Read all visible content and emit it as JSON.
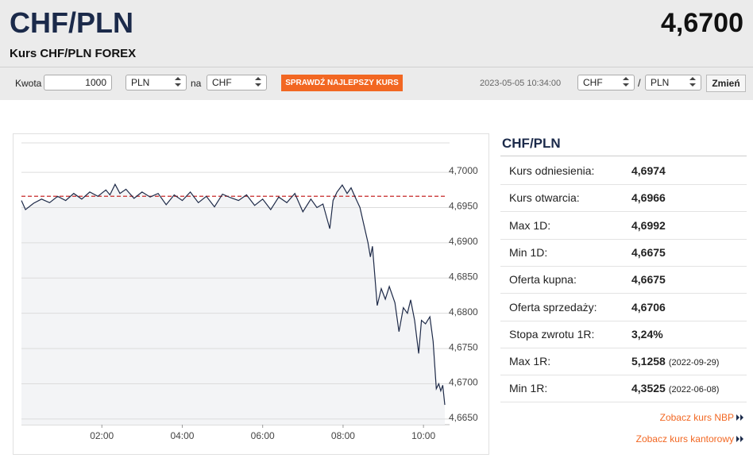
{
  "header": {
    "title": "CHF/PLN",
    "rate": "4,6700",
    "subtitle": "Kurs CHF/PLN FOREX"
  },
  "converter": {
    "amount_label": "Kwota",
    "amount": "1000",
    "from": "PLN",
    "na": "na",
    "to": "CHF",
    "button": "SPRAWDŹ NAJLEPSZY KURS",
    "timestamp": "2023-05-05 10:34:00",
    "pair_from": "CHF",
    "separator": "/",
    "pair_to": "PLN",
    "swap": "Zmień"
  },
  "chart_data": {
    "type": "line",
    "color": "#1e2a48",
    "area_color": "#f3f4f6",
    "grid": true,
    "reference_line": 4.6966,
    "reference_color": "#c62828",
    "x": [
      0,
      0.1,
      0.3,
      0.5,
      0.7,
      0.9,
      1.1,
      1.3,
      1.5,
      1.7,
      1.9,
      2.1,
      2.2,
      2.33,
      2.45,
      2.6,
      2.8,
      3.0,
      3.2,
      3.4,
      3.6,
      3.8,
      4.0,
      4.2,
      4.4,
      4.6,
      4.8,
      5.0,
      5.2,
      5.4,
      5.6,
      5.8,
      6.0,
      6.2,
      6.4,
      6.6,
      6.8,
      7.0,
      7.2,
      7.35,
      7.5,
      7.67,
      7.75,
      7.85,
      7.98,
      8.1,
      8.2,
      8.3,
      8.42,
      8.5,
      8.62,
      8.68,
      8.73,
      8.85,
      8.95,
      9.05,
      9.15,
      9.29,
      9.39,
      9.5,
      9.6,
      9.68,
      9.78,
      9.88,
      9.95,
      10.05,
      10.16,
      10.24,
      10.32,
      10.38,
      10.43,
      10.48,
      10.53
    ],
    "values": [
      4.696,
      4.6947,
      4.6956,
      4.6962,
      4.6957,
      4.6966,
      4.696,
      4.697,
      4.6962,
      4.6972,
      4.6966,
      4.6975,
      4.6968,
      4.6983,
      4.697,
      4.6976,
      4.6963,
      4.6972,
      4.6965,
      4.697,
      4.6954,
      4.6968,
      4.696,
      4.6972,
      4.6957,
      4.6966,
      4.6951,
      4.6969,
      4.6964,
      4.696,
      4.6968,
      4.6953,
      4.6962,
      4.6947,
      4.6965,
      4.6957,
      4.697,
      4.6944,
      4.6962,
      4.695,
      4.6955,
      4.692,
      4.696,
      4.6972,
      4.6982,
      4.697,
      4.6978,
      4.6965,
      4.695,
      4.693,
      4.69,
      4.688,
      4.6895,
      4.6811,
      4.6835,
      4.682,
      4.6838,
      4.6815,
      4.6774,
      4.6808,
      4.68,
      4.6819,
      4.679,
      4.6743,
      4.679,
      4.6785,
      4.6795,
      4.676,
      4.6693,
      4.67,
      4.669,
      4.6698,
      4.667
    ],
    "xlim": [
      0,
      10.57
    ],
    "xticks": [
      {
        "value": 2,
        "label": "02:00"
      },
      {
        "value": 4,
        "label": "04:00"
      },
      {
        "value": 6,
        "label": "06:00"
      },
      {
        "value": 8,
        "label": "08:00"
      },
      {
        "value": 10,
        "label": "10:00"
      }
    ],
    "ylim": [
      4.6642,
      4.7044
    ],
    "yticks": [
      {
        "value": 4.665,
        "label": "4,6650"
      },
      {
        "value": 4.67,
        "label": "4,6700"
      },
      {
        "value": 4.675,
        "label": "4,6750"
      },
      {
        "value": 4.68,
        "label": "4,6800"
      },
      {
        "value": 4.685,
        "label": "4,6850"
      },
      {
        "value": 4.69,
        "label": "4,6900"
      },
      {
        "value": 4.695,
        "label": "4,6950"
      },
      {
        "value": 4.7,
        "label": "4,7000"
      }
    ]
  },
  "stats": {
    "title": "CHF/PLN",
    "rows": [
      {
        "label": "Kurs odniesienia:",
        "value": "4,6974"
      },
      {
        "label": "Kurs otwarcia:",
        "value": "4,6966"
      },
      {
        "label": "Max 1D:",
        "value": "4,6992"
      },
      {
        "label": "Min 1D:",
        "value": "4,6675"
      },
      {
        "label": "Oferta kupna:",
        "value": "4,6675"
      },
      {
        "label": "Oferta sprzedaży:",
        "value": "4,6706"
      },
      {
        "label": "Stopa zwrotu 1R:",
        "value": "3,24%"
      },
      {
        "label": "Max 1R:",
        "value": "5,1258",
        "note": "(2022-09-29)"
      },
      {
        "label": "Min 1R:",
        "value": "4,3525",
        "note": "(2022-06-08)"
      }
    ]
  },
  "links": [
    "Zobacz kurs NBP",
    "Zobacz kurs kantorowy"
  ]
}
